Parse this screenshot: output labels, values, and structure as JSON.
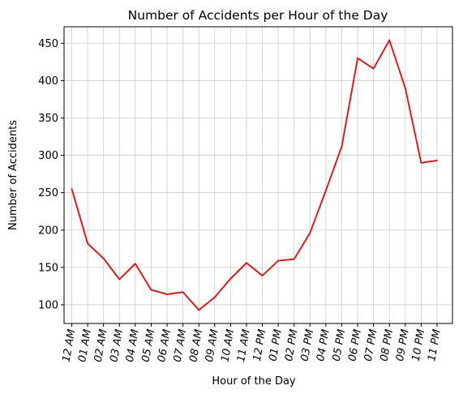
{
  "chart_data": {
    "type": "line",
    "title": "Number of Accidents per Hour of the Day",
    "xlabel": "Hour of the Day",
    "ylabel": "Number of Accidents",
    "categories": [
      "12 AM",
      "01 AM",
      "02 AM",
      "03 AM",
      "04 AM",
      "05 AM",
      "06 AM",
      "07 AM",
      "08 AM",
      "09 AM",
      "10 AM",
      "11 AM",
      "12 PM",
      "01 PM",
      "02 PM",
      "03 PM",
      "04 PM",
      "05 PM",
      "06 PM",
      "07 PM",
      "08 PM",
      "09 PM",
      "10 PM",
      "11 PM"
    ],
    "series": [
      {
        "values": [
          255,
          182,
          162,
          134,
          155,
          120,
          114,
          117,
          93,
          110,
          135,
          156,
          139,
          159,
          161,
          196,
          253,
          312,
          430,
          416,
          454,
          390,
          290,
          293
        ],
        "color": "#ff0000"
      }
    ],
    "yticks": [
      100,
      150,
      200,
      250,
      300,
      350,
      400,
      450
    ],
    "ylim": [
      75,
      472
    ],
    "grid": true,
    "legend": "none",
    "xtick_rotation_deg": 80
  }
}
